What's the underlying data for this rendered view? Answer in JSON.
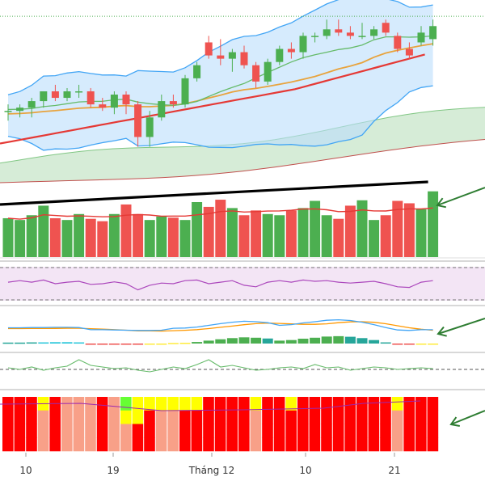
{
  "chart_data": {
    "type": "candlestick",
    "title": "",
    "x_axis_labels": [
      "10",
      "19",
      "Tháng 12",
      "10",
      "21"
    ],
    "candles": [
      {
        "o": 164.2,
        "h": 164.6,
        "l": 163.6,
        "c": 164.2
      },
      {
        "o": 164.2,
        "h": 164.6,
        "l": 163.8,
        "c": 164.4
      },
      {
        "o": 164.4,
        "h": 165.0,
        "l": 163.8,
        "c": 164.8
      },
      {
        "o": 164.8,
        "h": 165.4,
        "l": 164.4,
        "c": 165.4
      },
      {
        "o": 165.4,
        "h": 165.8,
        "l": 164.8,
        "c": 165.0
      },
      {
        "o": 165.0,
        "h": 165.6,
        "l": 164.8,
        "c": 165.4
      },
      {
        "o": 165.4,
        "h": 165.8,
        "l": 165.0,
        "c": 165.4
      },
      {
        "o": 165.4,
        "h": 165.6,
        "l": 164.4,
        "c": 164.6
      },
      {
        "o": 164.6,
        "h": 165.0,
        "l": 164.2,
        "c": 164.4
      },
      {
        "o": 164.4,
        "h": 165.4,
        "l": 164.0,
        "c": 165.2
      },
      {
        "o": 165.2,
        "h": 165.4,
        "l": 164.0,
        "c": 164.6
      },
      {
        "o": 164.6,
        "h": 164.8,
        "l": 162.0,
        "c": 162.6
      },
      {
        "o": 162.6,
        "h": 164.2,
        "l": 162.0,
        "c": 163.8
      },
      {
        "o": 163.8,
        "h": 165.2,
        "l": 163.6,
        "c": 164.8
      },
      {
        "o": 164.8,
        "h": 165.2,
        "l": 164.4,
        "c": 164.6
      },
      {
        "o": 164.6,
        "h": 166.4,
        "l": 164.4,
        "c": 166.2
      },
      {
        "o": 166.2,
        "h": 167.2,
        "l": 166.0,
        "c": 167.0
      },
      {
        "o": 168.4,
        "h": 168.8,
        "l": 167.4,
        "c": 167.6
      },
      {
        "o": 167.6,
        "h": 168.6,
        "l": 167.0,
        "c": 167.4
      },
      {
        "o": 167.4,
        "h": 168.0,
        "l": 166.6,
        "c": 167.8
      },
      {
        "o": 167.8,
        "h": 168.2,
        "l": 166.8,
        "c": 167.0
      },
      {
        "o": 167.0,
        "h": 167.2,
        "l": 165.6,
        "c": 166.0
      },
      {
        "o": 166.0,
        "h": 167.4,
        "l": 165.8,
        "c": 167.2
      },
      {
        "o": 167.2,
        "h": 168.2,
        "l": 167.0,
        "c": 168.0
      },
      {
        "o": 168.0,
        "h": 168.4,
        "l": 167.4,
        "c": 167.8
      },
      {
        "o": 167.8,
        "h": 169.0,
        "l": 167.4,
        "c": 168.8
      },
      {
        "o": 168.8,
        "h": 169.0,
        "l": 168.4,
        "c": 168.8
      },
      {
        "o": 168.8,
        "h": 169.8,
        "l": 168.6,
        "c": 169.2
      },
      {
        "o": 169.2,
        "h": 169.8,
        "l": 168.8,
        "c": 169.0
      },
      {
        "o": 169.0,
        "h": 169.4,
        "l": 168.6,
        "c": 168.8
      },
      {
        "o": 168.8,
        "h": 169.6,
        "l": 168.6,
        "c": 168.8
      },
      {
        "o": 168.8,
        "h": 169.4,
        "l": 168.6,
        "c": 169.2
      },
      {
        "o": 169.6,
        "h": 169.8,
        "l": 168.8,
        "c": 169.0
      },
      {
        "o": 168.8,
        "h": 169.0,
        "l": 167.8,
        "c": 168.0
      },
      {
        "o": 168.0,
        "h": 168.4,
        "l": 167.4,
        "c": 167.6
      },
      {
        "o": 168.4,
        "h": 169.4,
        "l": 168.2,
        "c": 169.0
      },
      {
        "o": 168.6,
        "h": 169.8,
        "l": 168.2,
        "c": 169.4
      }
    ],
    "volume": [
      65,
      62,
      70,
      86,
      65,
      62,
      72,
      64,
      60,
      72,
      88,
      72,
      62,
      68,
      66,
      62,
      92,
      84,
      96,
      82,
      70,
      78,
      72,
      70,
      78,
      82,
      94,
      70,
      64,
      86,
      95,
      62,
      70,
      94,
      90,
      80,
      110
    ],
    "colors": {
      "up": "#4caf50",
      "down": "#ef5350",
      "band_fill": "#bbdefb",
      "band_line": "#42a5f5",
      "ma_fast": "#66bb6a",
      "ma_mid": "#e8a33d",
      "ma_slow": "#e53935",
      "cloud": "#c8e6c9",
      "rsi_fill": "#f3e5f5",
      "rsi_line": "#ab47bc",
      "heat_red": "#ff0000",
      "heat_salmon": "#f8a088",
      "heat_yellow": "#ffff00",
      "heat_green": "#66ff33",
      "arrow": "#2e7d32"
    }
  }
}
